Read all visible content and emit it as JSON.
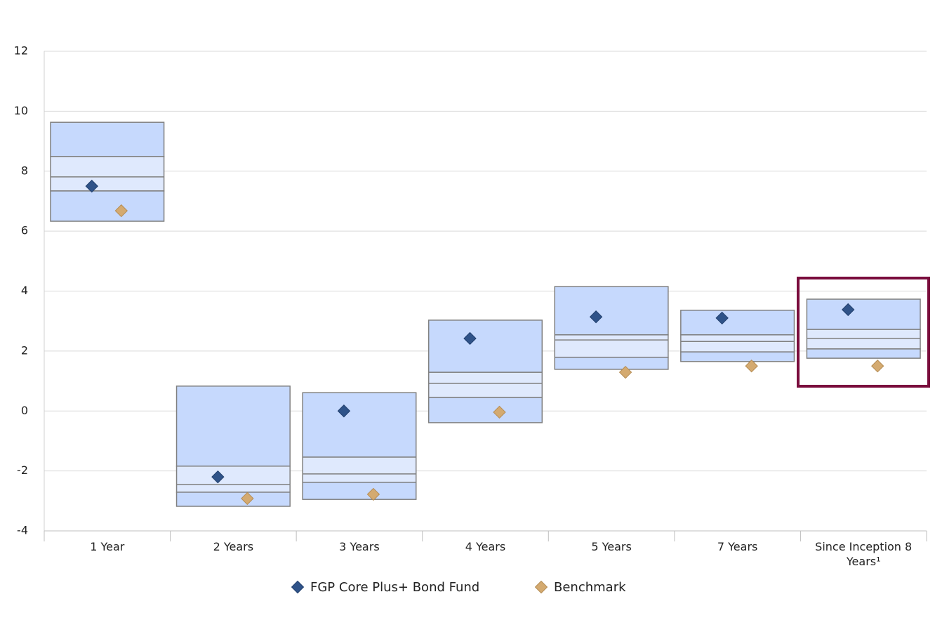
{
  "chart_data": {
    "type": "box",
    "categories": [
      "1 Year",
      "2 Years",
      "3 Years",
      "4 Years",
      "5 Years",
      "7 Years",
      "Since Inception 8 Years¹"
    ],
    "boxes": [
      [
        9.63,
        8.49,
        7.81,
        7.34,
        6.33
      ],
      [
        0.83,
        -1.84,
        -2.45,
        -2.71,
        -3.18
      ],
      [
        0.61,
        -1.54,
        -2.1,
        -2.38,
        -2.95
      ],
      [
        3.03,
        1.29,
        0.92,
        0.45,
        -0.39
      ],
      [
        4.15,
        2.54,
        2.37,
        1.79,
        1.39
      ],
      [
        3.36,
        2.54,
        2.32,
        1.97,
        1.65
      ],
      [
        3.73,
        2.72,
        2.42,
        2.07,
        1.76
      ]
    ],
    "box_colors": [
      "#c6d9fd",
      "#dfe9fd"
    ],
    "series": [
      {
        "name": "FGP Core Plus+ Bond Fund",
        "color": "#2f5389",
        "values": [
          7.5,
          -2.2,
          0.0,
          2.42,
          3.14,
          3.1,
          3.38
        ]
      },
      {
        "name": "Benchmark",
        "color": "#d4aa70",
        "values": [
          6.68,
          -2.92,
          -2.78,
          -0.04,
          1.29,
          1.5,
          1.5
        ]
      }
    ],
    "ylim": [
      -4,
      12
    ],
    "yticks": [
      -4,
      -2,
      0,
      2,
      4,
      6,
      8,
      10,
      12
    ],
    "grid": true,
    "legend": "bottom"
  }
}
